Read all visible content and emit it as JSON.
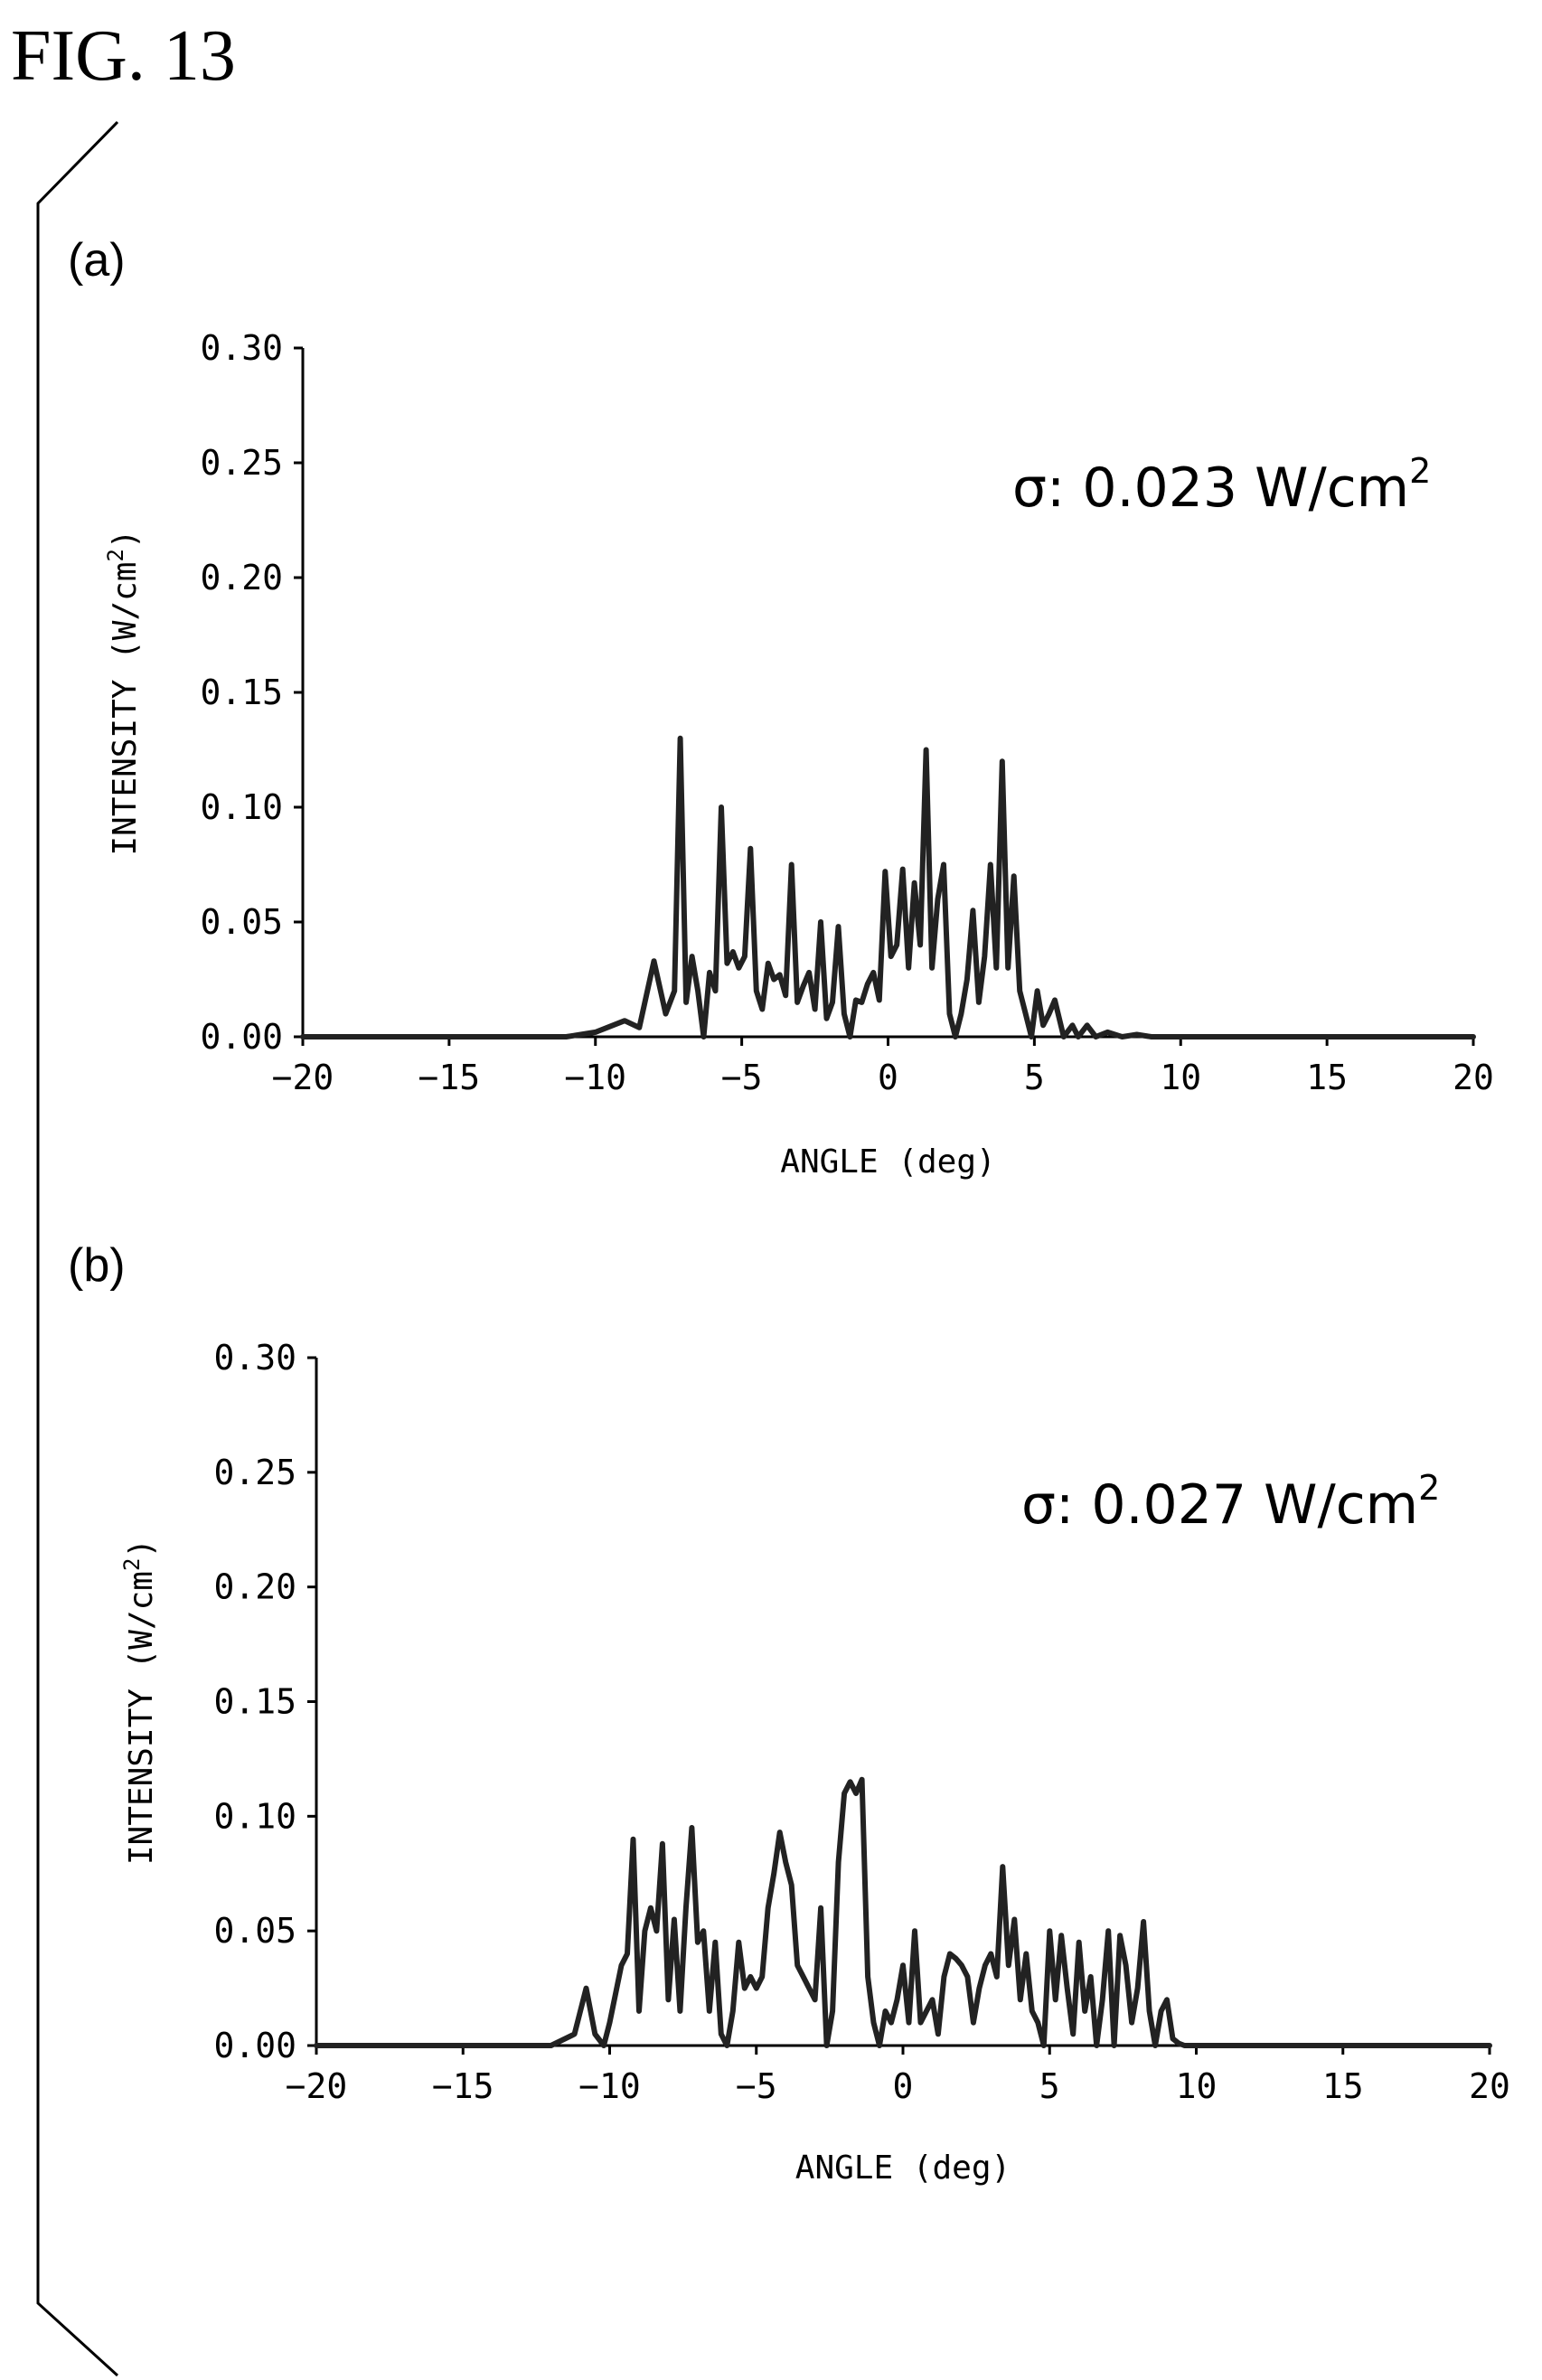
{
  "figure_title": "FIG. 13",
  "chart_data": [
    {
      "type": "line",
      "panel_label": "(a)",
      "annotation_prefix": "σ: 0.023 W/cm",
      "annotation_sup": "2",
      "xlabel": "ANGLE (deg)",
      "ylabel_prefix": "INTENSITY (W/cm",
      "ylabel_sup": "2",
      "ylabel_suffix": ")",
      "xlim": [
        -20,
        20
      ],
      "ylim": [
        0,
        0.3
      ],
      "xticks": [
        "−20",
        "−15",
        "−10",
        "−5",
        "0",
        "5",
        "10",
        "15",
        "20"
      ],
      "yticks": [
        "0.00",
        "0.05",
        "0.10",
        "0.15",
        "0.20",
        "0.25",
        "0.30"
      ],
      "grid": false,
      "series": [
        {
          "x": [
            -20,
            -11,
            -10,
            -9,
            -8.5,
            -8,
            -7.6,
            -7.3,
            -7.1,
            -6.9,
            -6.7,
            -6.5,
            -6.3,
            -6.1,
            -5.9,
            -5.7,
            -5.5,
            -5.3,
            -5.1,
            -4.9,
            -4.7,
            -4.5,
            -4.3,
            -4.1,
            -3.9,
            -3.7,
            -3.5,
            -3.3,
            -3.1,
            -2.9,
            -2.7,
            -2.5,
            -2.3,
            -2.1,
            -1.9,
            -1.7,
            -1.5,
            -1.3,
            -1.1,
            -0.9,
            -0.7,
            -0.5,
            -0.3,
            -0.1,
            0.1,
            0.3,
            0.5,
            0.7,
            0.9,
            1.1,
            1.3,
            1.5,
            1.7,
            1.9,
            2.1,
            2.3,
            2.5,
            2.7,
            2.9,
            3.1,
            3.3,
            3.5,
            3.7,
            3.9,
            4.1,
            4.3,
            4.5,
            4.7,
            4.9,
            5.1,
            5.3,
            5.5,
            5.7,
            6.0,
            6.3,
            6.5,
            6.8,
            7.1,
            7.5,
            8.0,
            8.5,
            9.0,
            9.5,
            10.0,
            10.5,
            11,
            20
          ],
          "y": [
            0,
            0,
            0.002,
            0.007,
            0.004,
            0.033,
            0.01,
            0.02,
            0.13,
            0.015,
            0.035,
            0.02,
            0.0,
            0.028,
            0.02,
            0.1,
            0.032,
            0.037,
            0.03,
            0.035,
            0.082,
            0.02,
            0.012,
            0.032,
            0.025,
            0.027,
            0.018,
            0.075,
            0.015,
            0.022,
            0.028,
            0.012,
            0.05,
            0.008,
            0.015,
            0.048,
            0.01,
            0.0,
            0.016,
            0.015,
            0.023,
            0.028,
            0.016,
            0.072,
            0.035,
            0.04,
            0.073,
            0.03,
            0.067,
            0.04,
            0.125,
            0.03,
            0.06,
            0.075,
            0.01,
            0.0,
            0.01,
            0.025,
            0.055,
            0.015,
            0.035,
            0.075,
            0.03,
            0.12,
            0.03,
            0.07,
            0.02,
            0.01,
            0.0,
            0.02,
            0.005,
            0.01,
            0.016,
            0.0,
            0.005,
            0.0,
            0.005,
            0.0,
            0.002,
            0.0,
            0.001,
            0.0,
            0.0,
            0.0,
            0.0,
            0,
            0
          ]
        }
      ]
    },
    {
      "type": "line",
      "panel_label": "(b)",
      "annotation_prefix": "σ: 0.027 W/cm",
      "annotation_sup": "2",
      "xlabel": "ANGLE (deg)",
      "ylabel_prefix": "INTENSITY (W/cm",
      "ylabel_sup": "2",
      "ylabel_suffix": ")",
      "xlim": [
        -20,
        20
      ],
      "ylim": [
        0,
        0.3
      ],
      "xticks": [
        "−20",
        "−15",
        "−10",
        "−5",
        "0",
        "5",
        "10",
        "15",
        "20"
      ],
      "yticks": [
        "0.00",
        "0.05",
        "0.10",
        "0.15",
        "0.20",
        "0.25",
        "0.30"
      ],
      "grid": false,
      "series": [
        {
          "x": [
            -20,
            -12,
            -11.2,
            -10.8,
            -10.5,
            -10.2,
            -10.0,
            -9.6,
            -9.4,
            -9.2,
            -9.0,
            -8.8,
            -8.6,
            -8.4,
            -8.2,
            -8.0,
            -7.8,
            -7.6,
            -7.4,
            -7.2,
            -7.0,
            -6.8,
            -6.6,
            -6.4,
            -6.2,
            -6.0,
            -5.8,
            -5.6,
            -5.4,
            -5.2,
            -5.0,
            -4.8,
            -4.6,
            -4.4,
            -4.2,
            -4.0,
            -3.8,
            -3.6,
            -3.4,
            -3.2,
            -3.0,
            -2.8,
            -2.6,
            -2.4,
            -2.2,
            -2.0,
            -1.8,
            -1.6,
            -1.4,
            -1.2,
            -1.0,
            -0.8,
            -0.6,
            -0.4,
            -0.2,
            0.0,
            0.2,
            0.4,
            0.6,
            0.8,
            1.0,
            1.2,
            1.4,
            1.6,
            1.8,
            2.0,
            2.2,
            2.4,
            2.6,
            2.8,
            3.0,
            3.2,
            3.4,
            3.6,
            3.8,
            4.0,
            4.2,
            4.4,
            4.6,
            4.8,
            5.0,
            5.2,
            5.4,
            5.6,
            5.8,
            6.0,
            6.2,
            6.4,
            6.6,
            6.8,
            7.0,
            7.2,
            7.4,
            7.6,
            7.8,
            8.0,
            8.2,
            8.4,
            8.6,
            8.8,
            9.0,
            9.2,
            9.4,
            9.6,
            9.8,
            10.0,
            10.2,
            10.4,
            10.6,
            10.8,
            11.0,
            11.4,
            12,
            20
          ],
          "y": [
            0,
            0,
            0.005,
            0.025,
            0.005,
            0.0,
            0.01,
            0.035,
            0.04,
            0.09,
            0.015,
            0.05,
            0.06,
            0.05,
            0.088,
            0.02,
            0.055,
            0.015,
            0.06,
            0.095,
            0.045,
            0.05,
            0.015,
            0.045,
            0.005,
            0.0,
            0.015,
            0.045,
            0.025,
            0.03,
            0.025,
            0.03,
            0.06,
            0.075,
            0.093,
            0.08,
            0.07,
            0.035,
            0.03,
            0.025,
            0.02,
            0.06,
            0.0,
            0.015,
            0.08,
            0.11,
            0.115,
            0.11,
            0.116,
            0.03,
            0.01,
            0.0,
            0.015,
            0.01,
            0.02,
            0.035,
            0.01,
            0.05,
            0.01,
            0.015,
            0.02,
            0.005,
            0.03,
            0.04,
            0.038,
            0.035,
            0.03,
            0.01,
            0.025,
            0.035,
            0.04,
            0.03,
            0.078,
            0.035,
            0.055,
            0.02,
            0.04,
            0.015,
            0.01,
            0.0,
            0.05,
            0.02,
            0.048,
            0.025,
            0.005,
            0.045,
            0.015,
            0.03,
            0.0,
            0.02,
            0.05,
            0.0,
            0.048,
            0.035,
            0.01,
            0.025,
            0.054,
            0.015,
            0.0,
            0.015,
            0.02,
            0.003,
            0.001,
            0.0,
            0.0,
            0.0,
            0.0,
            0.0,
            0.0,
            0.0,
            0.0,
            0.0,
            0,
            0
          ]
        }
      ]
    }
  ]
}
